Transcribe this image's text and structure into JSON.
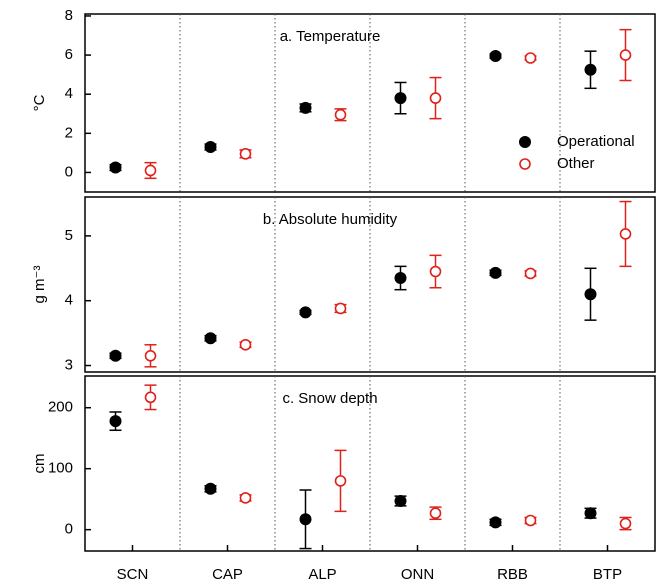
{
  "chart_data": [
    {
      "type": "errorbar",
      "title": "a. Temperature",
      "ylabel": "°C",
      "ylim": [
        -1,
        8.1
      ],
      "yticks": [
        0,
        2,
        4,
        6,
        8
      ],
      "series": [
        {
          "name": "Operational",
          "color": "#000000",
          "values": [
            0.25,
            1.3,
            3.3,
            3.8,
            5.95,
            5.25
          ],
          "errors": [
            0.15,
            0.15,
            0.2,
            0.8,
            0.1,
            0.95
          ]
        },
        {
          "name": "Other",
          "color": "#e0201b",
          "values": [
            0.1,
            0.95,
            2.95,
            3.8,
            5.85,
            6.0
          ],
          "errors": [
            0.4,
            0.2,
            0.3,
            1.05,
            0.1,
            1.3
          ]
        }
      ]
    },
    {
      "type": "errorbar",
      "title": "b. Absolute humidity",
      "ylabel": "g m⁻³",
      "ylim": [
        2.9,
        5.6
      ],
      "yticks": [
        3,
        4,
        5
      ],
      "series": [
        {
          "color": "#000000",
          "values": [
            3.15,
            3.42,
            3.82,
            4.35,
            4.43,
            4.1
          ],
          "errors": [
            0.04,
            0.04,
            0.03,
            0.18,
            0.04,
            0.4
          ]
        },
        {
          "color": "#e0201b",
          "values": [
            3.15,
            3.32,
            3.88,
            4.45,
            4.42,
            5.03
          ],
          "errors": [
            0.17,
            0.04,
            0.06,
            0.25,
            0.04,
            0.5
          ]
        }
      ]
    },
    {
      "type": "errorbar",
      "title": "c. Snow depth",
      "ylabel": "cm",
      "ylim": [
        -35,
        252
      ],
      "yticks": [
        0,
        100,
        200
      ],
      "categories": [
        "SCN",
        "CAP",
        "ALP",
        "ONN",
        "RBB",
        "BTP"
      ],
      "series": [
        {
          "color": "#000000",
          "values": [
            178,
            67,
            17,
            47,
            12,
            27
          ],
          "errors": [
            15,
            5,
            48,
            8,
            5,
            8
          ]
        },
        {
          "color": "#e0201b",
          "values": [
            217,
            52,
            80,
            27,
            15,
            10
          ],
          "errors": [
            20,
            5,
            50,
            10,
            5,
            10
          ]
        }
      ]
    }
  ]
}
